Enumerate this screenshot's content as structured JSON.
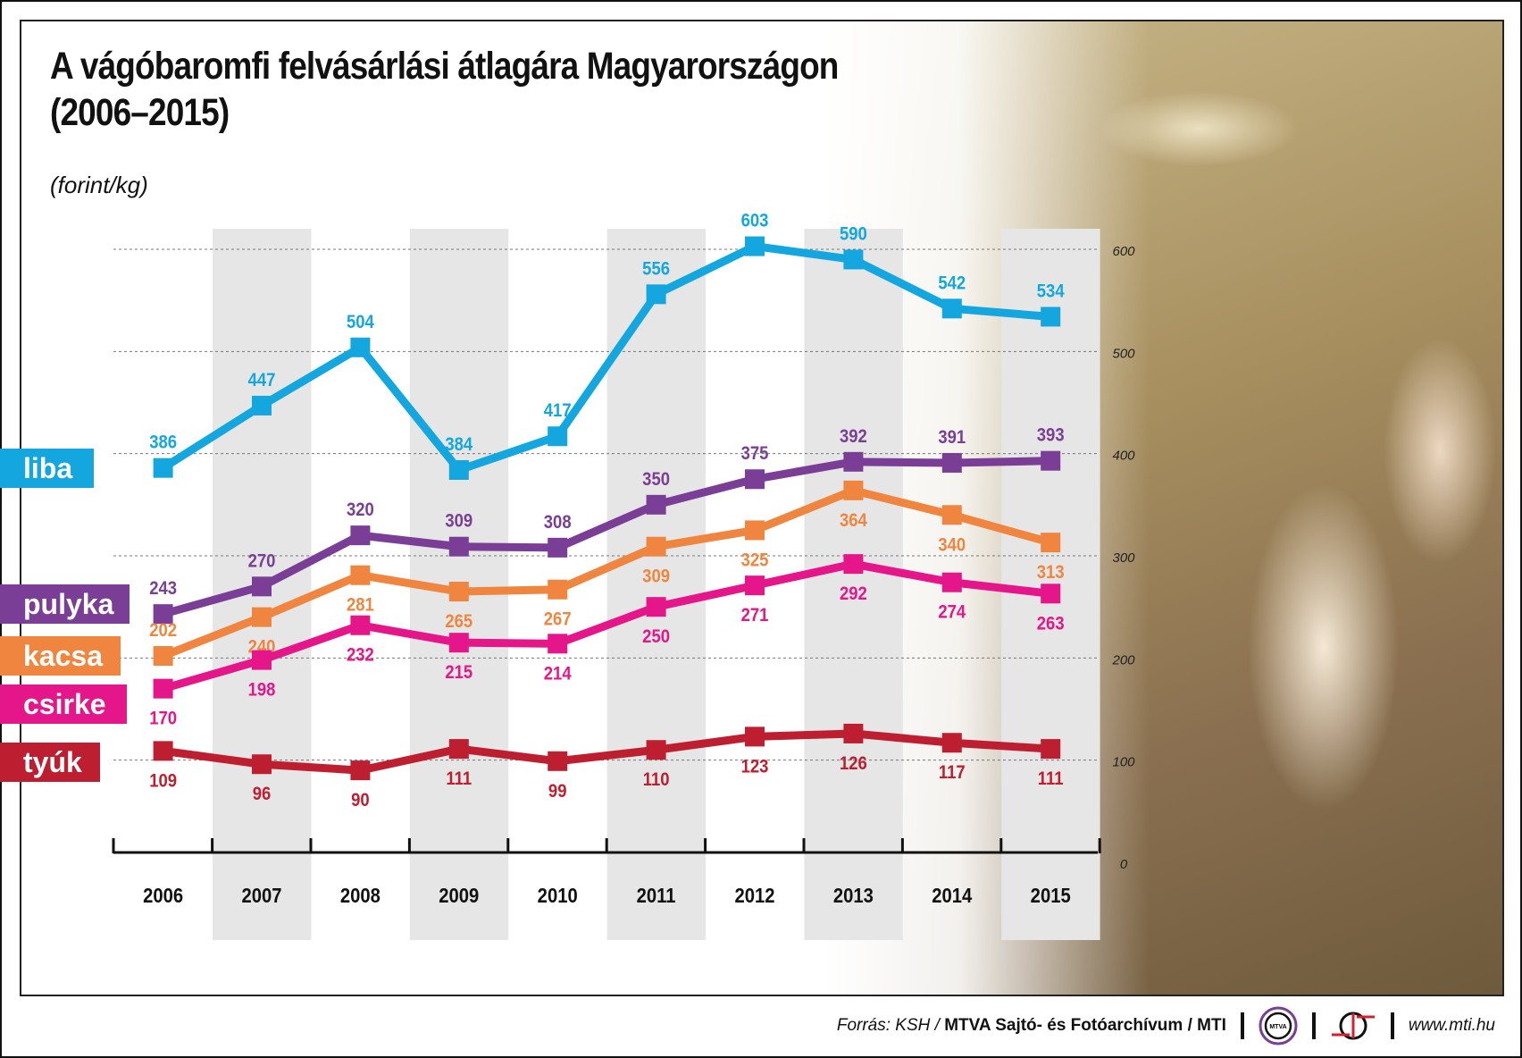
{
  "title_line1": "A vágóbaromfi felvásárlási átlagára Magyarországon",
  "title_line2": "(2006–2015)",
  "footer": {
    "source_prefix": "Forrás: KSH / ",
    "source_bold": "MTVA Sajtó- és Fotóarchívum / MTI",
    "logo1": "MTVA",
    "website": "www.mti.hu"
  },
  "chart_data": {
    "type": "line",
    "title": "A vágóbaromfi felvásárlási átlagára Magyarországon (2006–2015)",
    "ylabel": "(forint/kg)",
    "x": [
      "2006",
      "2007",
      "2008",
      "2009",
      "2010",
      "2011",
      "2012",
      "2013",
      "2014",
      "2015"
    ],
    "ylim": [
      0,
      600
    ],
    "yticks": [
      0,
      100,
      200,
      300,
      400,
      500,
      600
    ],
    "grid": true,
    "legend_placement": "left",
    "series": [
      {
        "name": "liba",
        "color": "#13a6df",
        "values": [
          386,
          447,
          504,
          384,
          417,
          556,
          603,
          590,
          542,
          534
        ]
      },
      {
        "name": "pulyka",
        "color": "#7a3e97",
        "values": [
          243,
          270,
          320,
          309,
          308,
          350,
          375,
          392,
          391,
          393
        ]
      },
      {
        "name": "kacsa",
        "color": "#f0853f",
        "values": [
          202,
          240,
          281,
          265,
          267,
          309,
          325,
          364,
          340,
          313
        ]
      },
      {
        "name": "csirke",
        "color": "#e4168a",
        "values": [
          170,
          198,
          232,
          215,
          214,
          250,
          271,
          292,
          274,
          263
        ]
      },
      {
        "name": "tyúk",
        "color": "#bd1f30",
        "values": [
          109,
          96,
          90,
          111,
          99,
          110,
          123,
          126,
          117,
          111
        ]
      }
    ]
  }
}
